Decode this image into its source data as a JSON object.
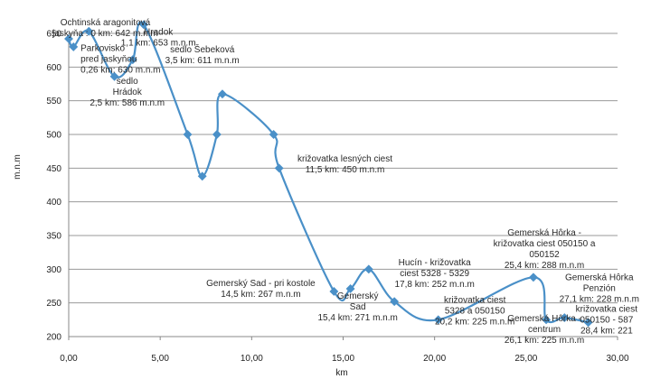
{
  "chart_data": {
    "type": "line",
    "xlabel": "km",
    "ylabel": "m.n.m",
    "xlim": [
      0,
      30
    ],
    "ylim": [
      200,
      650
    ],
    "x_ticks": [
      "0,00",
      "5,00",
      "10,00",
      "15,00",
      "20,00",
      "25,00",
      "30,00"
    ],
    "y_ticks": [
      "200",
      "250",
      "300",
      "350",
      "400",
      "450",
      "500",
      "550",
      "600",
      "650"
    ],
    "grid": true,
    "line_color": "#4a90c8",
    "grid_color": "#999999",
    "series": [
      {
        "x": [
          0,
          0.26,
          1.1,
          2.5,
          3.5,
          4.1,
          6.5,
          7.3,
          8.1,
          8.4,
          11.2,
          11.5,
          14.5,
          15.4,
          16.4,
          17.8,
          20.2,
          25.4,
          26.1,
          27.1,
          28.4
        ],
        "y": [
          642,
          630,
          653,
          586,
          611,
          663,
          500,
          438,
          500,
          560,
          500,
          450,
          267,
          271,
          300,
          252,
          225,
          288,
          225,
          228,
          221
        ]
      }
    ],
    "annotations": [
      {
        "lines": [
          "Ochtinská aragonitová",
          "jaskyňa : 0 km: 642 m.n.m"
        ],
        "anchor": [
          2.0,
          662
        ],
        "align": "middle"
      },
      {
        "lines": [
          "Hradok",
          "1,1 km: 653 m.n.m"
        ],
        "anchor": [
          4.9,
          648
        ],
        "align": "middle"
      },
      {
        "lines": [
          "Parkovisko",
          "pred jaskyňou",
          "0,26 km: 630 m.n.m"
        ],
        "anchor": [
          0.65,
          624
        ],
        "align": "start"
      },
      {
        "lines": [
          "sedlo Šebeková",
          "3,5 km: 611 m.n.m"
        ],
        "anchor": [
          7.3,
          622
        ],
        "align": "middle"
      },
      {
        "lines": [
          "sedlo",
          "Hrádok",
          "2,5 km: 586 m.n.m"
        ],
        "anchor": [
          3.2,
          575
        ],
        "align": "middle"
      },
      {
        "lines": [
          "križovatka lesných ciest",
          "11,5 km: 450 m.n.m"
        ],
        "anchor": [
          15.1,
          460
        ],
        "align": "middle"
      },
      {
        "lines": [
          "Gemerský Sad - pri kostole",
          "14,5 km: 267 m.n.m"
        ],
        "anchor": [
          10.5,
          275
        ],
        "align": "middle"
      },
      {
        "lines": [
          "Gemerský",
          "Sad",
          "15,4 km: 271 m.n.m"
        ],
        "anchor": [
          15.8,
          256
        ],
        "align": "middle"
      },
      {
        "lines": [
          "Hucín - križovatka",
          "ciest 5328 - 5329",
          "17,8 km: 252 m.n.m"
        ],
        "anchor": [
          20.0,
          306
        ],
        "align": "middle"
      },
      {
        "lines": [
          "križovatka ciest",
          "5328 a 050150",
          "20,2 km: 225 m.n.m"
        ],
        "anchor": [
          22.2,
          250
        ],
        "align": "middle"
      },
      {
        "lines": [
          "Gemerská Hôrka -",
          "križovatka ciest 050150 a",
          "050152",
          "25,4 km: 288 m.n.m"
        ],
        "anchor": [
          26.0,
          350
        ],
        "align": "middle"
      },
      {
        "lines": [
          "Gemerská Hôrka",
          "Penzión",
          "27,1 km: 228 m.n.m"
        ],
        "anchor": [
          29.0,
          284
        ],
        "align": "middle"
      },
      {
        "lines": [
          "Gemerská Hôrka -",
          "centrum",
          "26,1 km: 225 m.n.m"
        ],
        "anchor": [
          26.0,
          223
        ],
        "align": "middle"
      },
      {
        "lines": [
          "križovatka ciest",
          "050150 - 587",
          "28,4 km: 221"
        ],
        "anchor": [
          29.4,
          237
        ],
        "align": "middle"
      }
    ]
  }
}
